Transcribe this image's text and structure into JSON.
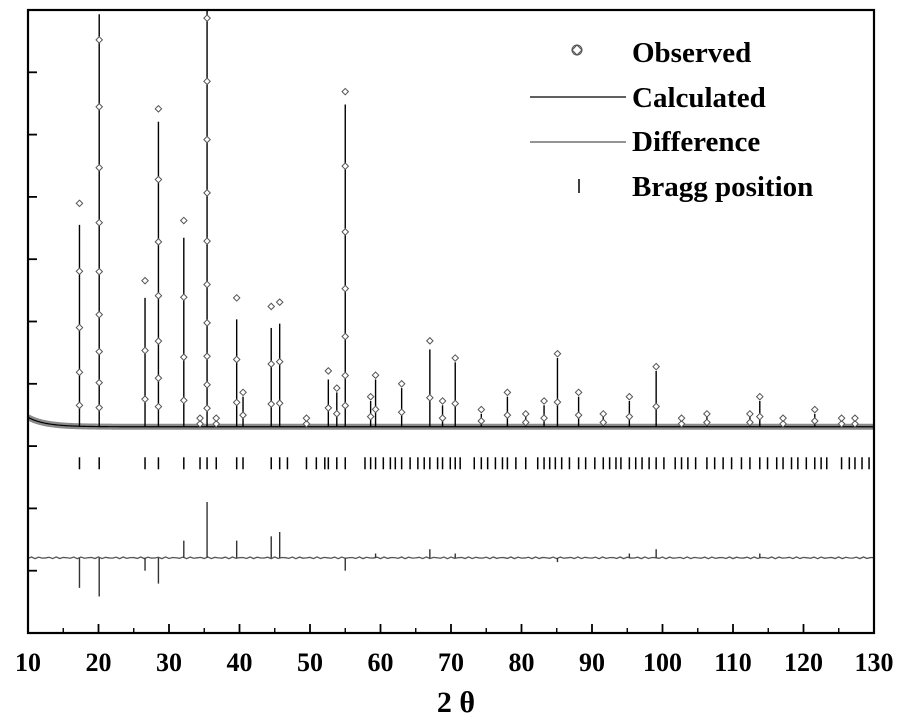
{
  "chart_data": {
    "type": "line",
    "title": "",
    "xlabel": "2 θ",
    "ylabel": "",
    "xlim": [
      10,
      130
    ],
    "ylim": [
      -0.45,
      1.0
    ],
    "x_ticks": [
      10,
      20,
      30,
      40,
      50,
      60,
      70,
      80,
      90,
      100,
      110,
      120,
      130
    ],
    "x_tick_labels": [
      "10",
      "20",
      "30",
      "40",
      "50",
      "60",
      "70",
      "80",
      "90",
      "100",
      "110",
      "120",
      "130"
    ],
    "y_tick_count": 10,
    "grid": false,
    "legend_position": "top-right",
    "legend": {
      "observed": "Observed",
      "calculated": "Calculated",
      "difference": "Difference",
      "bragg": "Bragg position"
    },
    "baseline": 0.03,
    "difference_offset": -0.275,
    "bragg_row_level": -0.055,
    "peaks": [
      {
        "x": 17.3,
        "calc": 0.47,
        "obs": 0.52
      },
      {
        "x": 20.1,
        "calc": 0.96,
        "obs": 1.07
      },
      {
        "x": 26.6,
        "calc": 0.3,
        "obs": 0.34
      },
      {
        "x": 28.5,
        "calc": 0.71,
        "obs": 0.74
      },
      {
        "x": 32.1,
        "calc": 0.44,
        "obs": 0.48
      },
      {
        "x": 34.4,
        "calc": 0.02,
        "obs": 0.02
      },
      {
        "x": 35.4,
        "calc": 1.18,
        "obs": 1.28
      },
      {
        "x": 36.7,
        "calc": 0.02,
        "obs": 0.02
      },
      {
        "x": 39.6,
        "calc": 0.25,
        "obs": 0.3
      },
      {
        "x": 40.5,
        "calc": 0.07,
        "obs": 0.08
      },
      {
        "x": 44.5,
        "calc": 0.23,
        "obs": 0.28
      },
      {
        "x": 45.7,
        "calc": 0.24,
        "obs": 0.29
      },
      {
        "x": 49.5,
        "calc": 0.02,
        "obs": 0.02
      },
      {
        "x": 52.6,
        "calc": 0.11,
        "obs": 0.13
      },
      {
        "x": 53.8,
        "calc": 0.08,
        "obs": 0.09
      },
      {
        "x": 55.0,
        "calc": 0.75,
        "obs": 0.78
      },
      {
        "x": 58.6,
        "calc": 0.06,
        "obs": 0.07
      },
      {
        "x": 59.3,
        "calc": 0.11,
        "obs": 0.12
      },
      {
        "x": 63.0,
        "calc": 0.09,
        "obs": 0.1
      },
      {
        "x": 67.0,
        "calc": 0.18,
        "obs": 0.2
      },
      {
        "x": 68.8,
        "calc": 0.05,
        "obs": 0.06
      },
      {
        "x": 70.6,
        "calc": 0.15,
        "obs": 0.16
      },
      {
        "x": 74.3,
        "calc": 0.03,
        "obs": 0.04
      },
      {
        "x": 78.0,
        "calc": 0.07,
        "obs": 0.08
      },
      {
        "x": 80.6,
        "calc": 0.03,
        "obs": 0.03
      },
      {
        "x": 83.2,
        "calc": 0.05,
        "obs": 0.06
      },
      {
        "x": 85.1,
        "calc": 0.16,
        "obs": 0.17
      },
      {
        "x": 88.1,
        "calc": 0.07,
        "obs": 0.08
      },
      {
        "x": 91.6,
        "calc": 0.03,
        "obs": 0.03
      },
      {
        "x": 95.3,
        "calc": 0.06,
        "obs": 0.07
      },
      {
        "x": 99.1,
        "calc": 0.13,
        "obs": 0.14
      },
      {
        "x": 102.7,
        "calc": 0.02,
        "obs": 0.02
      },
      {
        "x": 106.3,
        "calc": 0.03,
        "obs": 0.03
      },
      {
        "x": 112.4,
        "calc": 0.03,
        "obs": 0.03
      },
      {
        "x": 113.8,
        "calc": 0.06,
        "obs": 0.07
      },
      {
        "x": 117.1,
        "calc": 0.02,
        "obs": 0.02
      },
      {
        "x": 121.6,
        "calc": 0.03,
        "obs": 0.04
      },
      {
        "x": 125.4,
        "calc": 0.02,
        "obs": 0.02
      },
      {
        "x": 127.3,
        "calc": 0.02,
        "obs": 0.02
      }
    ],
    "bragg_positions": [
      17.3,
      20.1,
      26.6,
      28.5,
      32.1,
      34.4,
      35.4,
      36.7,
      39.6,
      40.5,
      44.5,
      45.7,
      46.8,
      49.5,
      50.9,
      52.1,
      52.6,
      53.8,
      55.0,
      57.8,
      58.6,
      59.3,
      60.4,
      61.4,
      62.1,
      63.0,
      64.2,
      65.3,
      66.2,
      67.0,
      68.1,
      68.8,
      69.9,
      70.6,
      71.3,
      73.3,
      74.3,
      75.2,
      76.3,
      77.3,
      78.0,
      79.2,
      80.6,
      82.3,
      83.2,
      84.0,
      84.8,
      85.7,
      86.8,
      88.1,
      89.1,
      90.4,
      91.6,
      92.5,
      93.4,
      94.1,
      95.3,
      96.2,
      97.1,
      98.1,
      99.1,
      100.2,
      101.8,
      102.7,
      103.6,
      104.7,
      106.3,
      107.4,
      108.6,
      109.8,
      111.2,
      112.4,
      113.8,
      114.9,
      116.2,
      117.1,
      118.3,
      119.2,
      120.4,
      121.6,
      122.5,
      123.3,
      125.4,
      126.5,
      127.3,
      128.3,
      129.3
    ],
    "difference_spikes": [
      {
        "x": 17.3,
        "value": -0.07
      },
      {
        "x": 20.1,
        "value": -0.09
      },
      {
        "x": 26.6,
        "value": -0.03
      },
      {
        "x": 28.5,
        "value": -0.06
      },
      {
        "x": 32.1,
        "value": 0.04
      },
      {
        "x": 35.4,
        "value": 0.13
      },
      {
        "x": 39.6,
        "value": 0.04
      },
      {
        "x": 44.5,
        "value": 0.05
      },
      {
        "x": 45.7,
        "value": 0.06
      },
      {
        "x": 55.0,
        "value": -0.03
      },
      {
        "x": 59.3,
        "value": 0.01
      },
      {
        "x": 67.0,
        "value": 0.02
      },
      {
        "x": 70.6,
        "value": 0.01
      },
      {
        "x": 85.1,
        "value": -0.01
      },
      {
        "x": 95.3,
        "value": 0.01
      },
      {
        "x": 99.1,
        "value": 0.02
      },
      {
        "x": 113.8,
        "value": 0.01
      }
    ]
  }
}
